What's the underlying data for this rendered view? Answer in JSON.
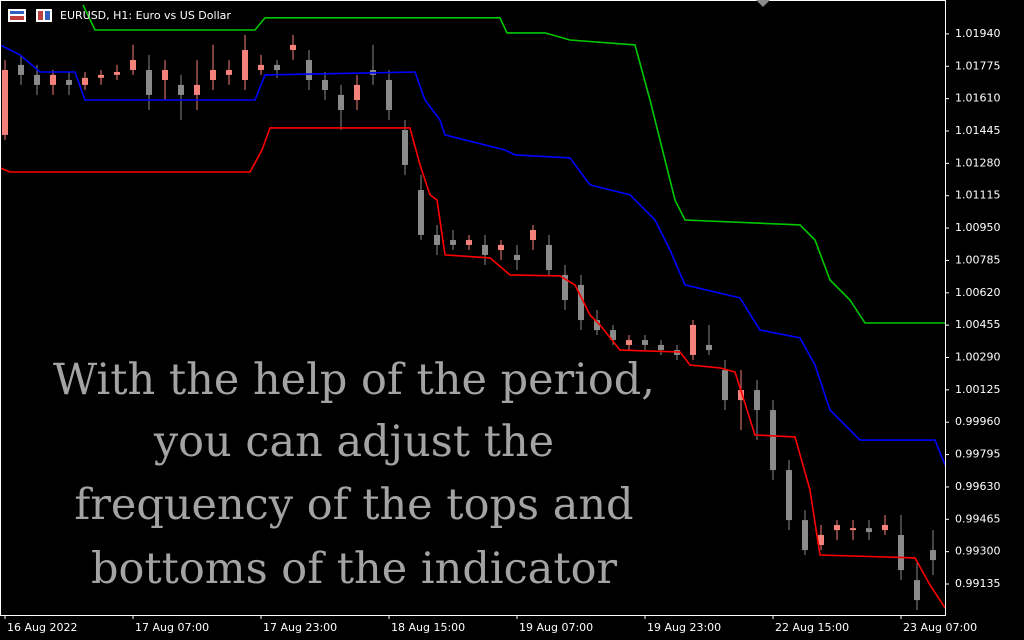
{
  "chart_data": {
    "type": "candlestick",
    "header": "EURUSD, H1:  Euro vs US Dollar",
    "overlay_lines": [
      "With the help of the period,",
      "you can adjust the",
      "frequency of the tops and",
      "bottoms of the indicator"
    ],
    "candles": {
      "open": [
        1.01425,
        1.01782,
        1.01731,
        1.0168,
        1.01705,
        1.0168,
        1.01716,
        1.01731,
        1.01756,
        1.01756,
        1.01705,
        1.0168,
        1.01629,
        1.01705,
        1.01731,
        1.01705,
        1.01756,
        1.01782,
        1.01858,
        1.01807,
        1.01705,
        1.01629,
        1.01603,
        1.01756,
        1.01705,
        1.0145,
        1.01144,
        1.00915,
        1.00889,
        1.00864,
        1.00864,
        1.00838,
        1.00813,
        1.00889,
        1.00864,
        1.00711,
        1.0066,
        1.00481,
        1.0043,
        1.00354,
        1.00379,
        1.00354,
        1.00328,
        1.00303,
        1.00354,
        1.00226,
        1.00073,
        1.00124,
        1.00022,
        0.99716,
        0.99461,
        0.99334,
        0.9941,
        0.9941,
        0.9942,
        0.9941,
        0.99385,
        0.99155,
        0.99308
      ],
      "high": [
        1.01807,
        1.01833,
        1.01782,
        1.01756,
        1.01746,
        1.01746,
        1.01756,
        1.01782,
        1.01884,
        1.01833,
        1.01807,
        1.01731,
        1.01807,
        1.01884,
        1.01807,
        1.01935,
        1.01833,
        1.01807,
        1.01935,
        1.01858,
        1.01746,
        1.0168,
        1.01731,
        1.01884,
        1.01756,
        1.01501,
        1.01221,
        1.00966,
        1.0094,
        1.00915,
        1.00915,
        1.00889,
        1.00864,
        1.00966,
        1.00915,
        1.00762,
        1.00711,
        1.00532,
        1.00456,
        1.00405,
        1.00405,
        1.00379,
        1.00354,
        1.00481,
        1.00456,
        1.00277,
        1.00226,
        1.00175,
        1.00073,
        0.99767,
        0.99512,
        0.99436,
        0.99461,
        0.99461,
        0.99461,
        0.99487,
        0.99487,
        0.99257,
        0.9941
      ],
      "low": [
        1.01399,
        1.0168,
        1.01629,
        1.01629,
        1.01629,
        1.01654,
        1.0168,
        1.01705,
        1.01731,
        1.01552,
        1.01603,
        1.01501,
        1.01552,
        1.01654,
        1.0168,
        1.01654,
        1.01731,
        1.01716,
        1.01807,
        1.01654,
        1.01603,
        1.0145,
        1.01552,
        1.0168,
        1.01501,
        1.01221,
        1.00889,
        1.00813,
        1.00838,
        1.00838,
        1.00762,
        1.00787,
        1.00736,
        1.00838,
        1.00711,
        1.00532,
        1.0043,
        1.00405,
        1.00354,
        1.00328,
        1.00328,
        1.00303,
        1.00277,
        1.00277,
        1.00303,
        1.00022,
        0.9992,
        0.99869,
        0.99665,
        0.9941,
        0.99283,
        0.99308,
        0.99359,
        0.99359,
        0.99359,
        0.99385,
        0.99155,
        0.99002,
        0.99181
      ],
      "close": [
        1.01756,
        1.01731,
        1.0168,
        1.01731,
        1.0168,
        1.01716,
        1.01731,
        1.01746,
        1.01807,
        1.01629,
        1.01756,
        1.01629,
        1.0168,
        1.01756,
        1.01756,
        1.01858,
        1.01782,
        1.01756,
        1.01884,
        1.01705,
        1.01654,
        1.01552,
        1.0168,
        1.01731,
        1.01552,
        1.01272,
        1.00915,
        1.00864,
        1.00864,
        1.00889,
        1.00813,
        1.00864,
        1.00787,
        1.0094,
        1.00736,
        1.00583,
        1.00481,
        1.0043,
        1.00379,
        1.00379,
        1.00354,
        1.00328,
        1.00303,
        1.00456,
        1.00328,
        1.00073,
        1.00124,
        1.00022,
        0.99716,
        0.99461,
        0.99308,
        0.99385,
        0.99436,
        0.9942,
        0.994,
        0.99436,
        0.99206,
        0.99053,
        0.99257
      ]
    },
    "up_color": "#f4817a",
    "down_color": "#8a8a8a",
    "series": [
      {
        "color": "#00c800",
        "x": [
          4.875,
          5.625,
          15.625,
          16.25,
          30.94,
          31.375,
          33.75,
          35.31,
          39.375,
          40.31,
          40.94,
          41.875,
          42.5,
          49.69,
          50.625,
          51.56,
          52.81,
          53.75,
          58.75
        ],
        "values": [
          1.02088,
          1.0196,
          1.0196,
          1.02022,
          1.02022,
          1.01945,
          1.01945,
          1.01909,
          1.01884,
          1.01603,
          1.01399,
          1.01093,
          1.00991,
          1.00966,
          1.00889,
          1.00685,
          1.00583,
          1.00466,
          1.00466
        ]
      },
      {
        "color": "#0000ff",
        "x": [
          -0.3125,
          0.9375,
          2.1875,
          4.375,
          5,
          15.625,
          16.25,
          25.625,
          26.25,
          27.19,
          27.5,
          31.25,
          31.875,
          35.31,
          36.56,
          39.06,
          40.625,
          41.56,
          42.5,
          45.94,
          47.19,
          49.69,
          50.625,
          51.56,
          52.81,
          53.44,
          58.125,
          58.75
        ],
        "values": [
          1.01884,
          1.01833,
          1.01746,
          1.01746,
          1.01603,
          1.01603,
          1.01731,
          1.01746,
          1.01603,
          1.01501,
          1.01425,
          1.01348,
          1.01323,
          1.01308,
          1.0117,
          1.01119,
          1.00991,
          1.00838,
          1.0066,
          1.00594,
          1.0043,
          1.0039,
          1.00252,
          1.00022,
          0.9992,
          0.99869,
          0.99869,
          0.99742
        ]
      },
      {
        "color": "#ff0000",
        "x": [
          -0.3125,
          0.3125,
          15.3125,
          16.0625,
          16.5625,
          25.3125,
          25.9375,
          26.5625,
          27,
          27.5,
          30.3125,
          31.5625,
          34.6875,
          35.625,
          36.5625,
          37.1875,
          38.4375,
          42.1875,
          42.8125,
          44.6875,
          45.625,
          46.875,
          49.375,
          50.3125,
          50.9375,
          56.875,
          57.8125,
          58.75
        ],
        "values": [
          1.01257,
          1.01236,
          1.01236,
          1.01348,
          1.01461,
          1.01461,
          1.01272,
          1.01119,
          1.01093,
          1.00813,
          1.00798,
          1.00711,
          1.00706,
          1.0066,
          1.00507,
          1.00456,
          1.00328,
          1.00318,
          1.00252,
          1.00237,
          1.00216,
          0.99895,
          0.99885,
          0.99614,
          0.99283,
          0.99268,
          0.9913,
          0.99013
        ]
      }
    ],
    "xlim": [
      -0.3125,
      58.75
    ],
    "xticks": [
      {
        "value": 0,
        "label": "16 Aug 2022"
      },
      {
        "value": 8,
        "label": "17 Aug 07:00"
      },
      {
        "value": 16,
        "label": "17 Aug 23:00"
      },
      {
        "value": 24,
        "label": "18 Aug 15:00"
      },
      {
        "value": 32,
        "label": "19 Aug 07:00"
      },
      {
        "value": 40,
        "label": "19 Aug 23:00"
      },
      {
        "value": 48,
        "label": "22 Aug 15:00"
      },
      {
        "value": 56,
        "label": "23 Aug 07:00"
      }
    ],
    "ylim": [
      0.98977,
      1.02113
    ],
    "yticks": [
      {
        "value": 1.0194,
        "label": "1.01940"
      },
      1.01775,
      {
        "value": 1.0161,
        "label": "1.01610"
      },
      1.01445,
      {
        "value": 1.0128,
        "label": "1.01280"
      },
      1.01115,
      {
        "value": 1.0095,
        "label": "1.00950"
      },
      1.00785,
      {
        "value": 1.0062,
        "label": "1.00620"
      },
      1.00455,
      {
        "value": 1.0029,
        "label": "1.00290"
      },
      1.00125,
      {
        "value": 0.9996,
        "label": "0.99960"
      },
      0.99795,
      {
        "value": 0.9963,
        "label": "0.99630"
      },
      0.99465,
      {
        "value": 0.993,
        "label": "0.99300"
      },
      0.99135
    ]
  }
}
